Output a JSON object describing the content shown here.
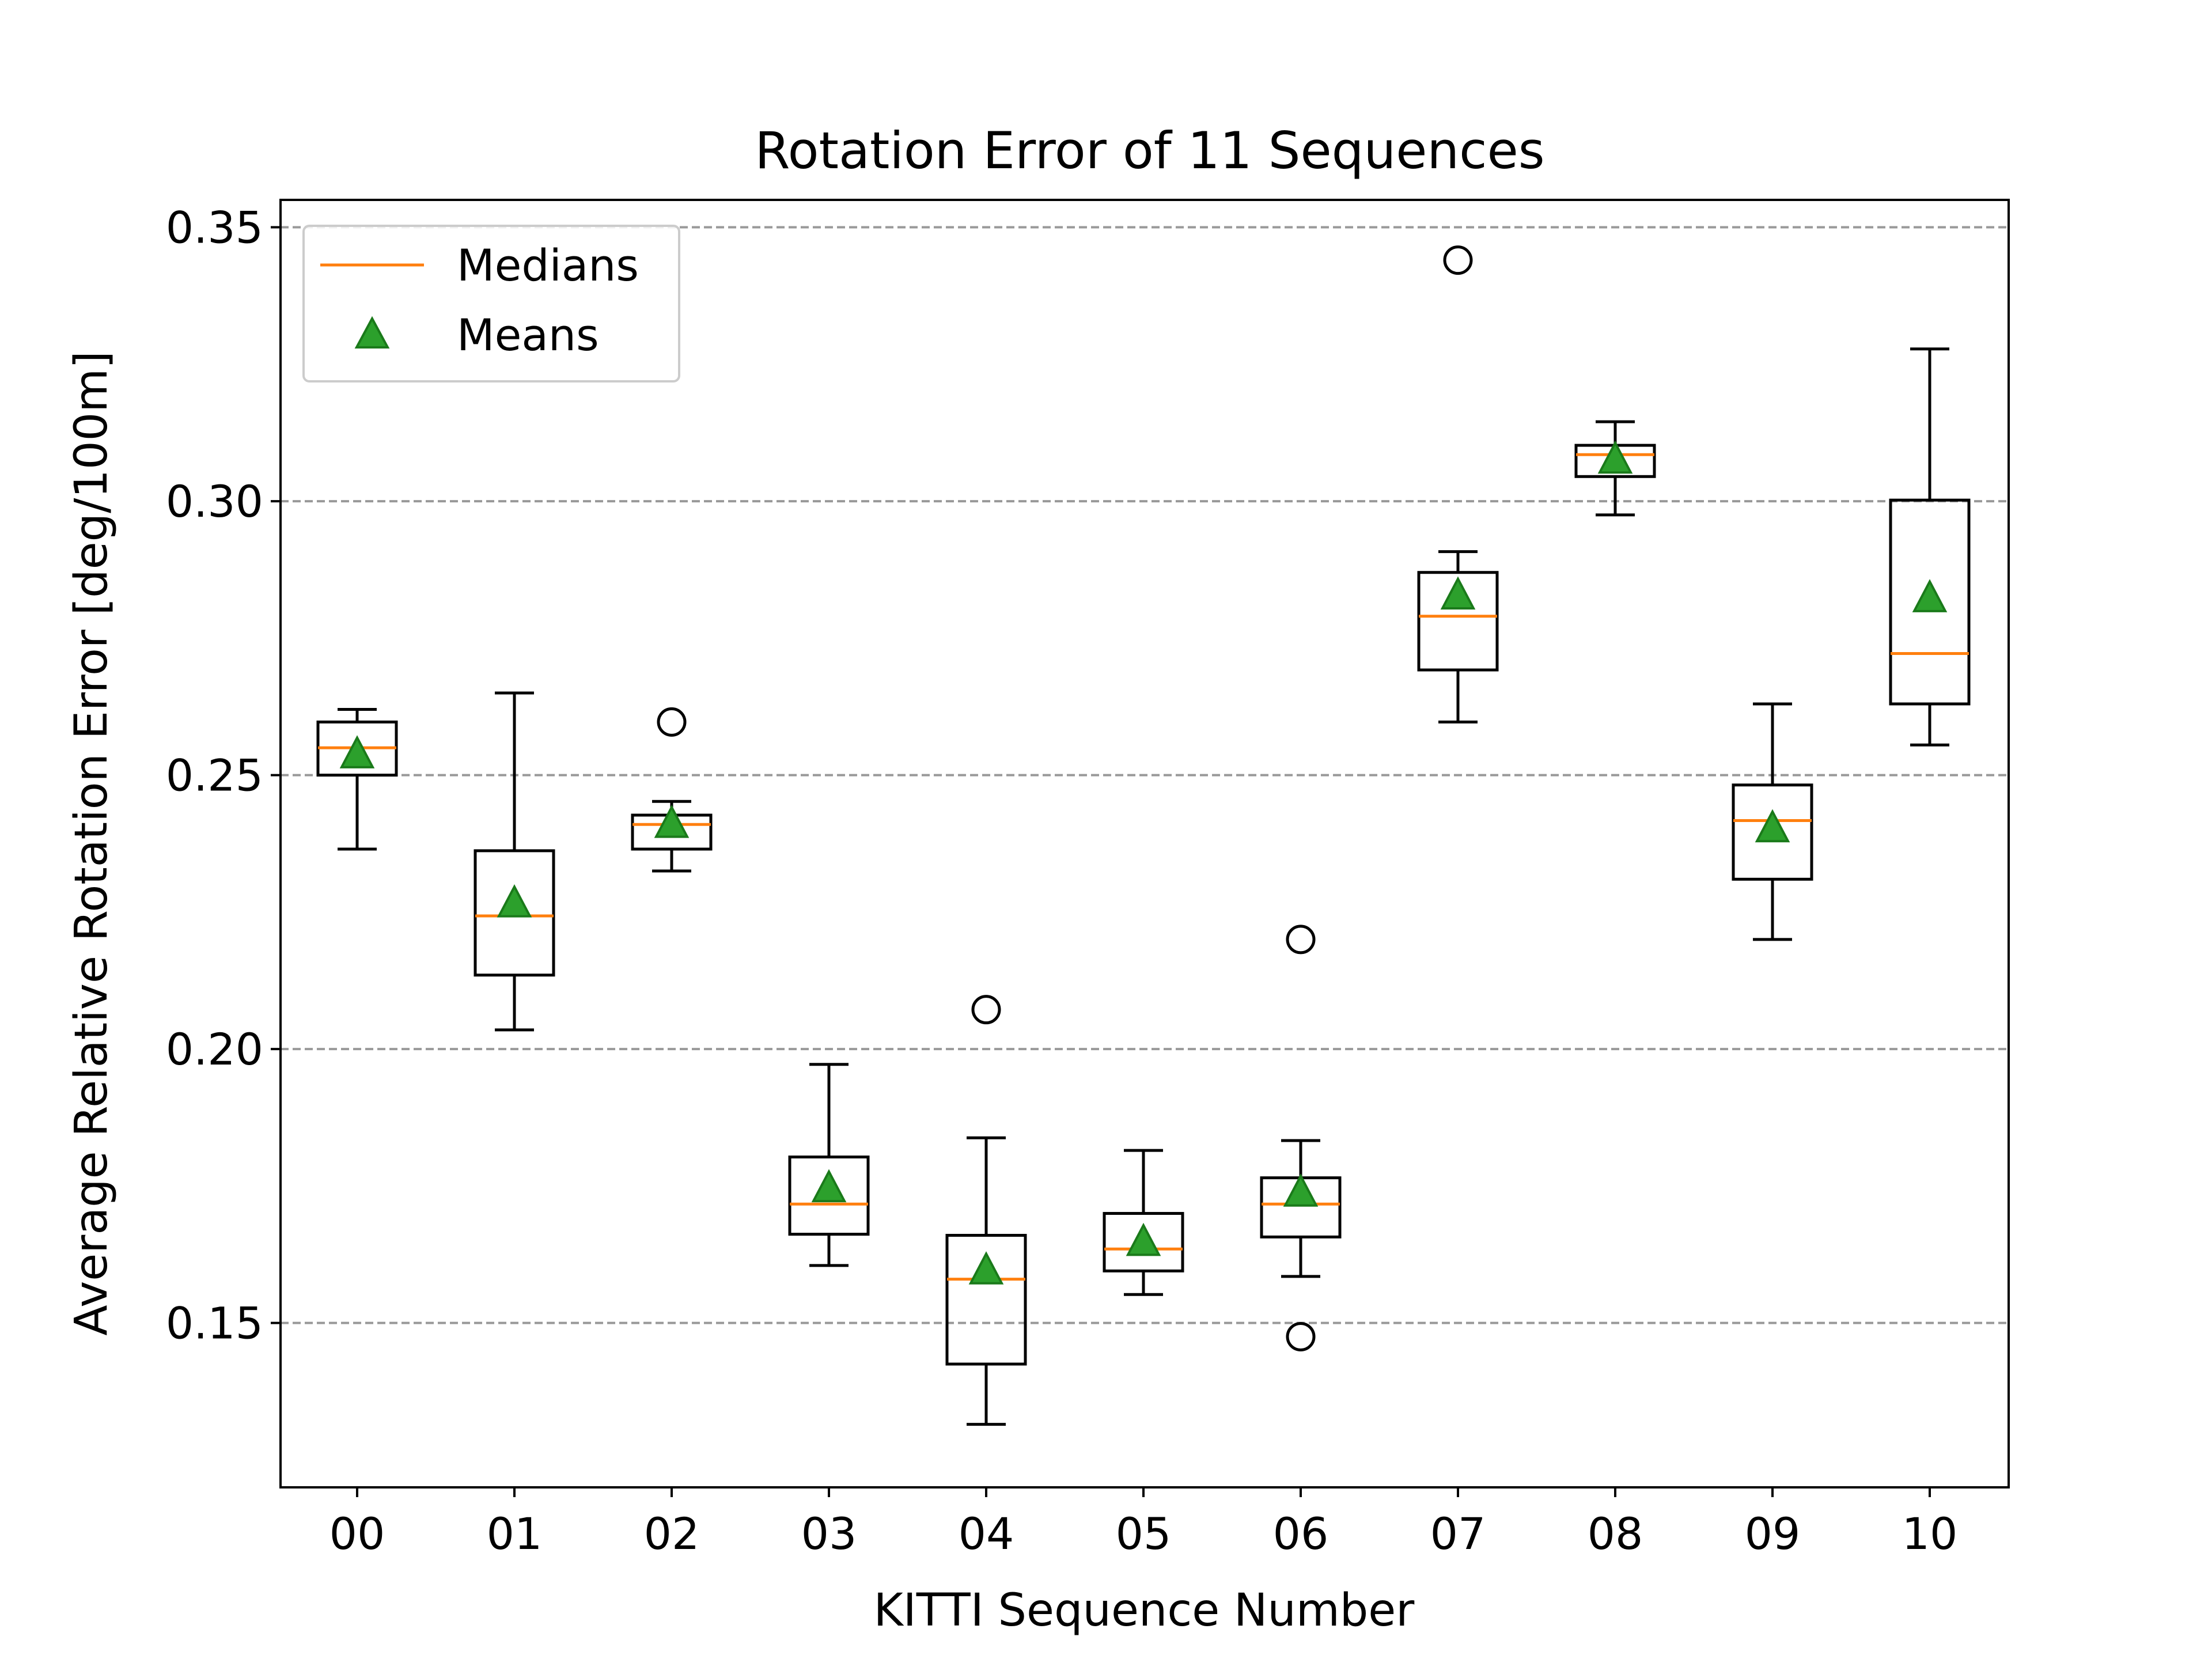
{
  "chart_data": {
    "type": "box",
    "title": "Rotation Error of 11 Sequences",
    "xlabel": "KITTI Sequence Number",
    "ylabel": "Average Relative Rotation Error [deg/100m]",
    "ylim": [
      0.12,
      0.355
    ],
    "yticks": [
      "0.15",
      "0.20",
      "0.25",
      "0.30",
      "0.35"
    ],
    "ytick_values": [
      0.15,
      0.2,
      0.25,
      0.3,
      0.35
    ],
    "grid": "horizontal dashed",
    "legend_position": "top-left",
    "legend": [
      {
        "label": "Medians",
        "marker": "line"
      },
      {
        "label": "Means",
        "marker": "triangle"
      }
    ],
    "colors": {
      "median": "#ff7f0e",
      "mean": "#2ca02c",
      "mean_edge": "#1a7a1a",
      "box": "#000000",
      "grid": "#999999"
    },
    "categories": [
      "00",
      "01",
      "02",
      "03",
      "04",
      "05",
      "06",
      "07",
      "08",
      "09",
      "10"
    ],
    "boxes": [
      {
        "category": "00",
        "whisker_low": 0.2365,
        "q1": 0.25,
        "median": 0.255,
        "q3": 0.2597,
        "whisker_high": 0.262,
        "mean": 0.254,
        "outliers": []
      },
      {
        "category": "01",
        "whisker_low": 0.2035,
        "q1": 0.2135,
        "median": 0.2243,
        "q3": 0.2362,
        "whisker_high": 0.265,
        "mean": 0.2268,
        "outliers": []
      },
      {
        "category": "02",
        "whisker_low": 0.2325,
        "q1": 0.2365,
        "median": 0.241,
        "q3": 0.2427,
        "whisker_high": 0.2452,
        "mean": 0.2413,
        "outliers": [
          0.2597
        ]
      },
      {
        "category": "03",
        "whisker_low": 0.1605,
        "q1": 0.1662,
        "median": 0.1717,
        "q3": 0.1803,
        "whisker_high": 0.1972,
        "mean": 0.1748,
        "outliers": []
      },
      {
        "category": "04",
        "whisker_low": 0.1315,
        "q1": 0.1425,
        "median": 0.158,
        "q3": 0.166,
        "whisker_high": 0.1838,
        "mean": 0.1598,
        "outliers": [
          0.2072
        ]
      },
      {
        "category": "05",
        "whisker_low": 0.1552,
        "q1": 0.1595,
        "median": 0.1635,
        "q3": 0.17,
        "whisker_high": 0.1815,
        "mean": 0.165,
        "outliers": []
      },
      {
        "category": "06",
        "whisker_low": 0.1585,
        "q1": 0.1657,
        "median": 0.1717,
        "q3": 0.1765,
        "whisker_high": 0.1833,
        "mean": 0.174,
        "outliers": [
          0.22,
          0.1475
        ]
      },
      {
        "category": "07",
        "whisker_low": 0.2597,
        "q1": 0.2692,
        "median": 0.279,
        "q3": 0.287,
        "whisker_high": 0.2908,
        "mean": 0.283,
        "outliers": [
          0.344
        ]
      },
      {
        "category": "08",
        "whisker_low": 0.2975,
        "q1": 0.3045,
        "median": 0.3085,
        "q3": 0.3102,
        "whisker_high": 0.3145,
        "mean": 0.3078,
        "outliers": []
      },
      {
        "category": "09",
        "whisker_low": 0.22,
        "q1": 0.231,
        "median": 0.2417,
        "q3": 0.2482,
        "whisker_high": 0.263,
        "mean": 0.2405,
        "outliers": []
      },
      {
        "category": "10",
        "whisker_low": 0.2555,
        "q1": 0.263,
        "median": 0.2722,
        "q3": 0.3002,
        "whisker_high": 0.3278,
        "mean": 0.2825,
        "outliers": []
      }
    ]
  }
}
